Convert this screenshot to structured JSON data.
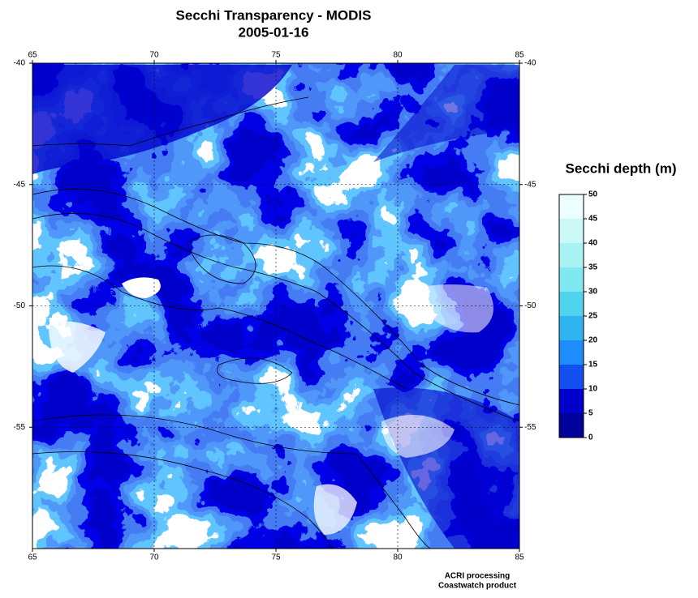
{
  "title": "Secchi Transparency - MODIS",
  "subtitle": "2005-01-16",
  "map": {
    "xlim": [
      65,
      85
    ],
    "ylim": [
      -40,
      -60
    ],
    "xticks": [
      65,
      70,
      75,
      80,
      85
    ],
    "yticks": [
      -40,
      -45,
      -50,
      -55
    ],
    "grid": true
  },
  "colorbar": {
    "title": "Secchi depth (m)",
    "lim": [
      0,
      50
    ],
    "ticks": [
      0,
      5,
      10,
      15,
      20,
      25,
      30,
      35,
      40,
      45,
      50
    ],
    "colors": [
      "#00009a",
      "#0000cc",
      "#1450f0",
      "#1e8cff",
      "#2fb4f0",
      "#50d4ee",
      "#80e8f0",
      "#a8f2f4",
      "#cdf8f8",
      "#ecffff"
    ]
  },
  "credits": [
    "ACRI processing",
    "Coastwatch product"
  ]
}
